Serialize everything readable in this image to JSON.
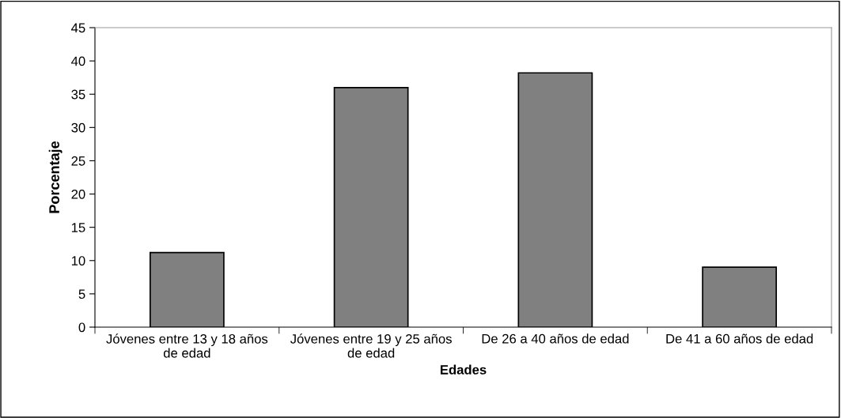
{
  "chart_data": {
    "type": "bar",
    "xlabel": "Edades",
    "ylabel": "Porcentaje",
    "categories": [
      "Jóvenes entre 13 y 18 años de edad",
      "Jóvenes entre 19 y 25 años de edad",
      "De 26 a 40 años de edad",
      "De 41 a 60 años de edad"
    ],
    "values": [
      11.2,
      36.0,
      38.2,
      9.0
    ],
    "color": "#808080",
    "ylim": [
      0,
      45
    ],
    "yticks": [
      0,
      5,
      10,
      15,
      20,
      25,
      30,
      35,
      40,
      45
    ],
    "grid": false,
    "legend": false
  }
}
